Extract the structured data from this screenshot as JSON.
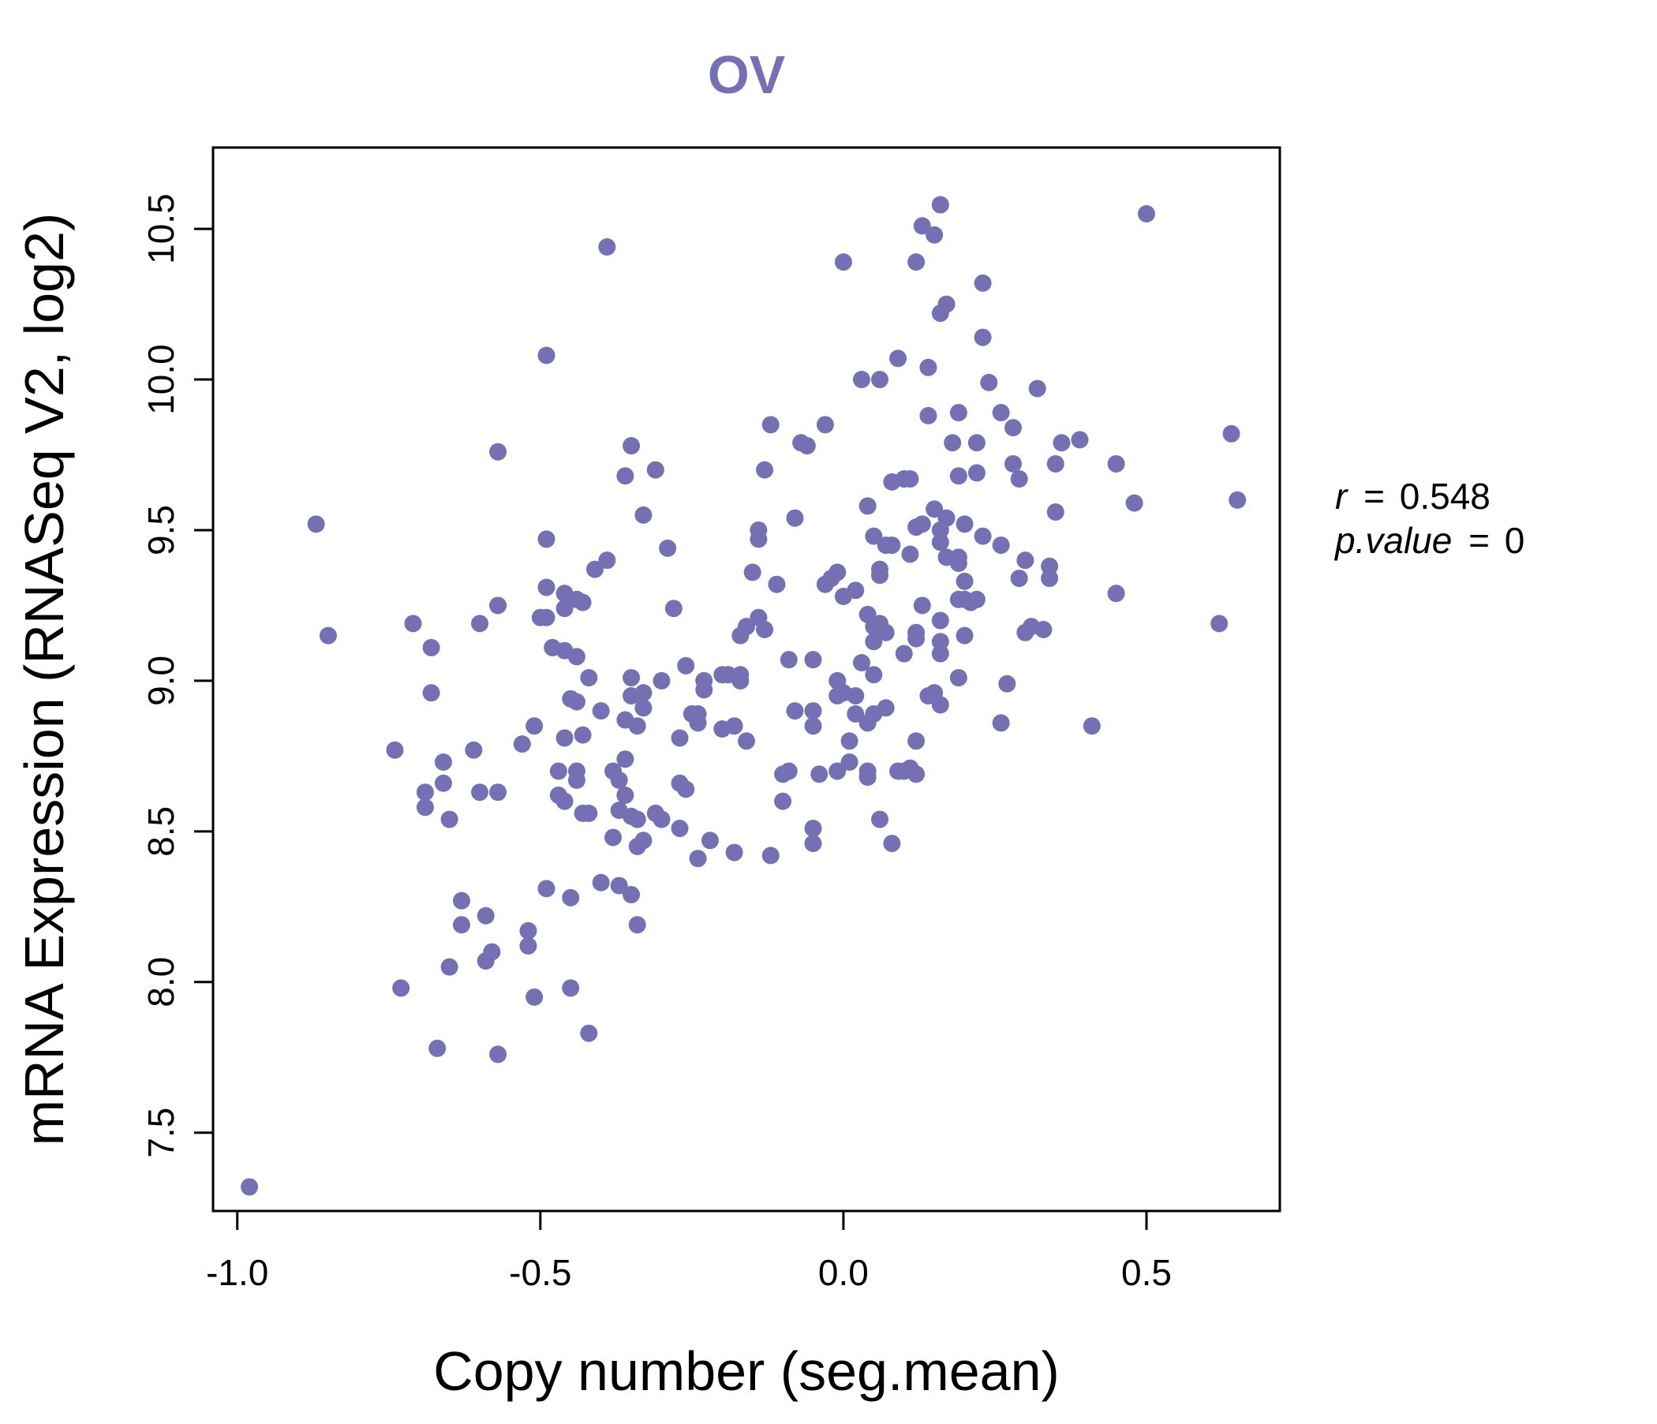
{
  "colors": {
    "accent": "#7570b3"
  },
  "chart_data": {
    "type": "scatter",
    "title": "OV",
    "xlabel": "Copy number (seg.mean)",
    "ylabel": "mRNA Expression (RNASeq V2, log2)",
    "xlim": [
      -1.04,
      0.72
    ],
    "ylim": [
      7.24,
      10.77
    ],
    "x_ticks": [
      -1.0,
      -0.5,
      0.0,
      0.5
    ],
    "x_tick_labels": [
      "-1.0",
      "-0.5",
      "0.0",
      "0.5"
    ],
    "y_ticks": [
      7.5,
      8.0,
      8.5,
      9.0,
      9.5,
      10.0,
      10.5
    ],
    "y_tick_labels": [
      "7.5",
      "8.0",
      "8.5",
      "9.0",
      "9.5",
      "10.0",
      "10.5"
    ],
    "stats": {
      "r_label": "r",
      "r_value": "0.548",
      "p_label": "p.value",
      "p_value": "0",
      "equals": "="
    },
    "points": [
      [
        -0.98,
        7.32
      ],
      [
        -0.87,
        9.52
      ],
      [
        -0.85,
        9.15
      ],
      [
        -0.74,
        8.77
      ],
      [
        -0.73,
        7.98
      ],
      [
        -0.71,
        9.19
      ],
      [
        -0.69,
        8.63
      ],
      [
        -0.69,
        8.58
      ],
      [
        -0.68,
        8.96
      ],
      [
        -0.68,
        9.11
      ],
      [
        -0.67,
        7.78
      ],
      [
        -0.66,
        8.73
      ],
      [
        -0.66,
        8.66
      ],
      [
        -0.65,
        8.54
      ],
      [
        -0.65,
        8.05
      ],
      [
        -0.63,
        8.19
      ],
      [
        -0.63,
        8.27
      ],
      [
        -0.61,
        8.77
      ],
      [
        -0.6,
        9.19
      ],
      [
        -0.6,
        8.63
      ],
      [
        -0.59,
        8.22
      ],
      [
        -0.59,
        8.07
      ],
      [
        -0.58,
        8.1
      ],
      [
        -0.57,
        9.76
      ],
      [
        -0.57,
        9.25
      ],
      [
        -0.57,
        8.63
      ],
      [
        -0.57,
        7.76
      ],
      [
        -0.53,
        8.79
      ],
      [
        -0.52,
        8.17
      ],
      [
        -0.52,
        8.12
      ],
      [
        -0.51,
        8.85
      ],
      [
        -0.51,
        7.95
      ],
      [
        -0.5,
        9.21
      ],
      [
        -0.49,
        9.21
      ],
      [
        -0.49,
        9.31
      ],
      [
        -0.49,
        9.47
      ],
      [
        -0.49,
        10.08
      ],
      [
        -0.49,
        8.31
      ],
      [
        -0.48,
        9.11
      ],
      [
        -0.47,
        8.7
      ],
      [
        -0.47,
        8.62
      ],
      [
        -0.46,
        8.81
      ],
      [
        -0.46,
        9.24
      ],
      [
        -0.46,
        9.29
      ],
      [
        -0.46,
        8.6
      ],
      [
        -0.46,
        9.1
      ],
      [
        -0.45,
        8.94
      ],
      [
        -0.45,
        8.28
      ],
      [
        -0.45,
        7.98
      ],
      [
        -0.44,
        8.93
      ],
      [
        -0.44,
        9.08
      ],
      [
        -0.44,
        8.7
      ],
      [
        -0.44,
        8.67
      ],
      [
        -0.44,
        9.27
      ],
      [
        -0.43,
        8.82
      ],
      [
        -0.43,
        8.56
      ],
      [
        -0.43,
        9.26
      ],
      [
        -0.42,
        8.56
      ],
      [
        -0.42,
        9.01
      ],
      [
        -0.42,
        7.83
      ],
      [
        -0.41,
        9.37
      ],
      [
        -0.4,
        8.9
      ],
      [
        -0.4,
        8.33
      ],
      [
        -0.39,
        9.4
      ],
      [
        -0.39,
        10.44
      ],
      [
        -0.38,
        8.7
      ],
      [
        -0.38,
        8.48
      ],
      [
        -0.37,
        8.67
      ],
      [
        -0.37,
        8.32
      ],
      [
        -0.37,
        8.57
      ],
      [
        -0.36,
        8.74
      ],
      [
        -0.36,
        8.62
      ],
      [
        -0.36,
        8.87
      ],
      [
        -0.36,
        9.68
      ],
      [
        -0.35,
        9.01
      ],
      [
        -0.35,
        8.55
      ],
      [
        -0.35,
        8.29
      ],
      [
        -0.35,
        8.95
      ],
      [
        -0.35,
        9.78
      ],
      [
        -0.34,
        8.85
      ],
      [
        -0.34,
        8.19
      ],
      [
        -0.34,
        8.54
      ],
      [
        -0.34,
        8.45
      ],
      [
        -0.33,
        8.47
      ],
      [
        -0.33,
        8.96
      ],
      [
        -0.33,
        8.91
      ],
      [
        -0.33,
        9.55
      ],
      [
        -0.31,
        9.7
      ],
      [
        -0.31,
        8.56
      ],
      [
        -0.3,
        9.0
      ],
      [
        -0.3,
        8.54
      ],
      [
        -0.29,
        9.44
      ],
      [
        -0.28,
        9.24
      ],
      [
        -0.27,
        8.81
      ],
      [
        -0.27,
        8.51
      ],
      [
        -0.27,
        8.66
      ],
      [
        -0.26,
        9.05
      ],
      [
        -0.26,
        8.64
      ],
      [
        -0.25,
        8.89
      ],
      [
        -0.24,
        8.41
      ],
      [
        -0.24,
        8.89
      ],
      [
        -0.24,
        8.86
      ],
      [
        -0.23,
        8.97
      ],
      [
        -0.23,
        9.0
      ],
      [
        -0.22,
        8.47
      ],
      [
        -0.2,
        9.02
      ],
      [
        -0.2,
        8.84
      ],
      [
        -0.19,
        9.02
      ],
      [
        -0.18,
        8.85
      ],
      [
        -0.18,
        8.43
      ],
      [
        -0.17,
        9.0
      ],
      [
        -0.17,
        9.02
      ],
      [
        -0.17,
        9.15
      ],
      [
        -0.16,
        9.18
      ],
      [
        -0.16,
        8.8
      ],
      [
        -0.15,
        9.36
      ],
      [
        -0.14,
        9.47
      ],
      [
        -0.14,
        9.5
      ],
      [
        -0.14,
        9.21
      ],
      [
        -0.13,
        9.7
      ],
      [
        -0.13,
        9.17
      ],
      [
        -0.12,
        8.42
      ],
      [
        -0.12,
        9.85
      ],
      [
        -0.11,
        9.32
      ],
      [
        -0.1,
        8.6
      ],
      [
        -0.1,
        8.69
      ],
      [
        -0.09,
        9.07
      ],
      [
        -0.09,
        8.7
      ],
      [
        -0.08,
        9.54
      ],
      [
        -0.08,
        8.9
      ],
      [
        -0.07,
        9.79
      ],
      [
        -0.06,
        9.78
      ],
      [
        -0.05,
        8.9
      ],
      [
        -0.05,
        8.85
      ],
      [
        -0.05,
        8.51
      ],
      [
        -0.05,
        8.46
      ],
      [
        -0.05,
        9.07
      ],
      [
        -0.04,
        8.69
      ],
      [
        -0.03,
        9.32
      ],
      [
        -0.03,
        9.85
      ],
      [
        -0.02,
        9.34
      ],
      [
        -0.01,
        8.95
      ],
      [
        -0.01,
        9.0
      ],
      [
        -0.01,
        9.36
      ],
      [
        -0.01,
        8.7
      ],
      [
        0.0,
        8.96
      ],
      [
        0.0,
        10.39
      ],
      [
        0.0,
        9.28
      ],
      [
        0.01,
        8.8
      ],
      [
        0.01,
        8.73
      ],
      [
        0.02,
        9.3
      ],
      [
        0.02,
        8.95
      ],
      [
        0.02,
        8.89
      ],
      [
        0.03,
        9.06
      ],
      [
        0.03,
        10.0
      ],
      [
        0.04,
        9.58
      ],
      [
        0.04,
        8.68
      ],
      [
        0.04,
        8.7
      ],
      [
        0.04,
        9.22
      ],
      [
        0.04,
        8.86
      ],
      [
        0.05,
        9.02
      ],
      [
        0.05,
        8.89
      ],
      [
        0.05,
        9.48
      ],
      [
        0.05,
        9.18
      ],
      [
        0.05,
        9.13
      ],
      [
        0.06,
        10.0
      ],
      [
        0.06,
        9.35
      ],
      [
        0.06,
        9.19
      ],
      [
        0.06,
        8.54
      ],
      [
        0.06,
        9.37
      ],
      [
        0.07,
        9.45
      ],
      [
        0.07,
        9.16
      ],
      [
        0.07,
        8.91
      ],
      [
        0.08,
        9.66
      ],
      [
        0.08,
        8.46
      ],
      [
        0.08,
        9.45
      ],
      [
        0.09,
        10.07
      ],
      [
        0.09,
        8.7
      ],
      [
        0.1,
        8.7
      ],
      [
        0.1,
        9.67
      ],
      [
        0.1,
        9.09
      ],
      [
        0.11,
        9.67
      ],
      [
        0.11,
        9.42
      ],
      [
        0.11,
        8.71
      ],
      [
        0.12,
        10.39
      ],
      [
        0.12,
        8.8
      ],
      [
        0.12,
        8.69
      ],
      [
        0.12,
        9.14
      ],
      [
        0.12,
        9.51
      ],
      [
        0.12,
        9.16
      ],
      [
        0.13,
        10.51
      ],
      [
        0.13,
        9.25
      ],
      [
        0.13,
        9.52
      ],
      [
        0.14,
        9.88
      ],
      [
        0.14,
        10.04
      ],
      [
        0.14,
        8.95
      ],
      [
        0.15,
        10.48
      ],
      [
        0.15,
        9.57
      ],
      [
        0.15,
        8.96
      ],
      [
        0.16,
        10.58
      ],
      [
        0.16,
        9.46
      ],
      [
        0.16,
        9.5
      ],
      [
        0.16,
        9.13
      ],
      [
        0.16,
        9.09
      ],
      [
        0.16,
        9.2
      ],
      [
        0.16,
        8.92
      ],
      [
        0.16,
        10.22
      ],
      [
        0.17,
        10.25
      ],
      [
        0.17,
        9.54
      ],
      [
        0.17,
        9.41
      ],
      [
        0.18,
        9.79
      ],
      [
        0.19,
        9.39
      ],
      [
        0.19,
        9.41
      ],
      [
        0.19,
        9.27
      ],
      [
        0.19,
        9.68
      ],
      [
        0.19,
        9.01
      ],
      [
        0.19,
        9.89
      ],
      [
        0.2,
        9.52
      ],
      [
        0.2,
        9.33
      ],
      [
        0.2,
        9.27
      ],
      [
        0.2,
        9.15
      ],
      [
        0.21,
        9.26
      ],
      [
        0.22,
        9.69
      ],
      [
        0.22,
        9.79
      ],
      [
        0.22,
        9.27
      ],
      [
        0.23,
        10.14
      ],
      [
        0.23,
        9.48
      ],
      [
        0.23,
        10.32
      ],
      [
        0.24,
        9.99
      ],
      [
        0.26,
        9.45
      ],
      [
        0.26,
        8.86
      ],
      [
        0.26,
        9.89
      ],
      [
        0.27,
        8.99
      ],
      [
        0.28,
        9.72
      ],
      [
        0.28,
        9.84
      ],
      [
        0.29,
        9.34
      ],
      [
        0.29,
        9.67
      ],
      [
        0.3,
        9.4
      ],
      [
        0.3,
        9.16
      ],
      [
        0.31,
        9.18
      ],
      [
        0.32,
        9.97
      ],
      [
        0.33,
        9.17
      ],
      [
        0.34,
        9.34
      ],
      [
        0.34,
        9.38
      ],
      [
        0.35,
        9.72
      ],
      [
        0.35,
        9.56
      ],
      [
        0.36,
        9.79
      ],
      [
        0.39,
        9.8
      ],
      [
        0.41,
        8.85
      ],
      [
        0.45,
        9.72
      ],
      [
        0.45,
        9.29
      ],
      [
        0.48,
        9.59
      ],
      [
        0.5,
        10.55
      ],
      [
        0.62,
        9.19
      ],
      [
        0.64,
        9.82
      ],
      [
        0.65,
        9.6
      ]
    ]
  }
}
